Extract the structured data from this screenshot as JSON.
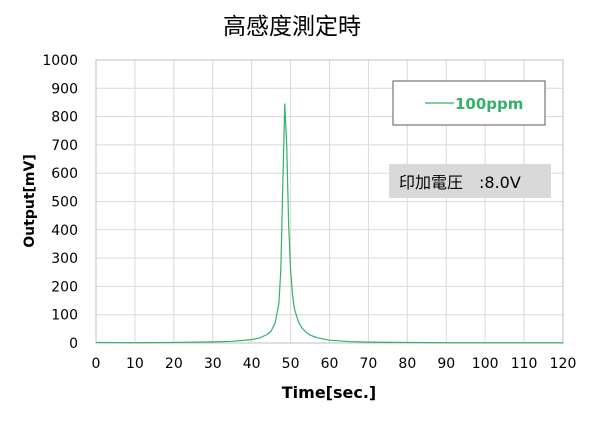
{
  "chart_data": {
    "type": "line",
    "title": "高感度測定時",
    "xlabel": "Time[sec.]",
    "ylabel": "Output[mV]",
    "xlim": [
      0,
      120
    ],
    "ylim": [
      0,
      1000
    ],
    "xticks": [
      0,
      10,
      20,
      30,
      40,
      50,
      60,
      70,
      80,
      90,
      100,
      110,
      120
    ],
    "yticks": [
      0,
      100,
      200,
      300,
      400,
      500,
      600,
      700,
      800,
      900,
      1000
    ],
    "grid": "vertical and horizontal",
    "legend_position": "top-right",
    "annotation": "印加電圧　:8.0V",
    "series": [
      {
        "name": "100ppm",
        "color": "#33b06a",
        "x": [
          0,
          10,
          20,
          30,
          35,
          40,
          42,
          44,
          45,
          46,
          47,
          47.5,
          48,
          48.5,
          49,
          49.5,
          50,
          50.5,
          51,
          52,
          53,
          54,
          55,
          57,
          60,
          65,
          70,
          80,
          90,
          100,
          110,
          120
        ],
        "y": [
          2,
          1,
          2,
          4,
          6,
          12,
          18,
          30,
          42,
          70,
          140,
          260,
          560,
          845,
          700,
          420,
          260,
          170,
          120,
          75,
          52,
          38,
          28,
          18,
          10,
          5,
          3,
          2,
          1,
          1,
          1,
          1
        ]
      }
    ]
  },
  "colors": {
    "series_line": "#33b06a",
    "legend_text": "#33b06a",
    "grid": "#d9d9d9",
    "annotation_bg": "#d9d9d9"
  }
}
